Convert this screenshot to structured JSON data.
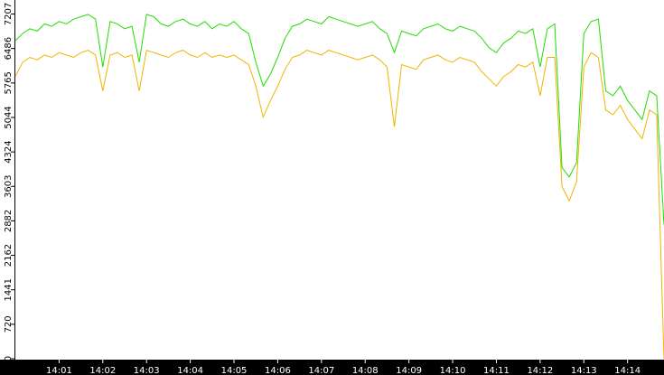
{
  "chart_data": {
    "type": "line",
    "categories": [
      null,
      null,
      null,
      null,
      null,
      null,
      "14:01",
      null,
      null,
      null,
      null,
      null,
      "14:02",
      null,
      null,
      null,
      null,
      null,
      "14:03",
      null,
      null,
      null,
      null,
      null,
      "14:04",
      null,
      null,
      null,
      null,
      null,
      "14:05",
      null,
      null,
      null,
      null,
      null,
      "14:06",
      null,
      null,
      null,
      null,
      null,
      "14:07",
      null,
      null,
      null,
      null,
      null,
      "14:08",
      null,
      null,
      null,
      null,
      null,
      "14:09",
      null,
      null,
      null,
      null,
      null,
      "14:10",
      null,
      null,
      null,
      null,
      null,
      "14:11",
      null,
      null,
      null,
      null,
      null,
      "14:12",
      null,
      null,
      null,
      null,
      null,
      "14:13",
      null,
      null,
      null,
      null,
      null,
      "14:14",
      null,
      null,
      null,
      null,
      null
    ],
    "series": [
      {
        "color": "#22dd00",
        "values": [
          6650,
          6800,
          6900,
          6850,
          7000,
          6950,
          7050,
          7000,
          7100,
          7150,
          7200,
          7100,
          6100,
          7050,
          7000,
          6900,
          6950,
          6200,
          7200,
          7150,
          7000,
          6950,
          7050,
          7100,
          7000,
          6950,
          7050,
          6900,
          7000,
          6950,
          7050,
          6900,
          6800,
          6200,
          5700,
          5950,
          6300,
          6700,
          6950,
          7000,
          7100,
          7050,
          7000,
          7150,
          7100,
          7050,
          7000,
          6950,
          7000,
          7050,
          6900,
          6800,
          6400,
          6850,
          6800,
          6750,
          6900,
          6950,
          7000,
          6900,
          6850,
          6950,
          6900,
          6850,
          6700,
          6500,
          6400,
          6600,
          6700,
          6850,
          6800,
          6900,
          6100,
          6900,
          7000,
          4000,
          3800,
          4100,
          6800,
          7050,
          7100,
          5600,
          5500,
          5700,
          5400,
          5200,
          5000,
          5600,
          5500,
          2800
        ]
      },
      {
        "color": "#f0b400",
        "values": [
          5900,
          6200,
          6300,
          6250,
          6350,
          6300,
          6400,
          6350,
          6300,
          6400,
          6450,
          6350,
          5600,
          6350,
          6400,
          6300,
          6350,
          5600,
          6450,
          6400,
          6350,
          6300,
          6400,
          6450,
          6350,
          6300,
          6400,
          6300,
          6350,
          6300,
          6350,
          6250,
          6150,
          5700,
          5050,
          5400,
          5700,
          6050,
          6300,
          6350,
          6450,
          6400,
          6350,
          6450,
          6400,
          6350,
          6300,
          6250,
          6300,
          6350,
          6250,
          6100,
          4850,
          6150,
          6100,
          6050,
          6250,
          6300,
          6350,
          6250,
          6200,
          6300,
          6250,
          6200,
          6000,
          5850,
          5700,
          5900,
          6000,
          6150,
          6100,
          6200,
          5500,
          6300,
          6300,
          3600,
          3300,
          3700,
          6100,
          6400,
          6300,
          5200,
          5100,
          5300,
          5000,
          4800,
          4600,
          5200,
          5100,
          0
        ]
      }
    ],
    "ylim": [
      0,
      7500
    ],
    "yticks": [
      0,
      720,
      1441,
      2162,
      2882,
      3603,
      4324,
      5044,
      5765,
      6486,
      7207
    ]
  }
}
